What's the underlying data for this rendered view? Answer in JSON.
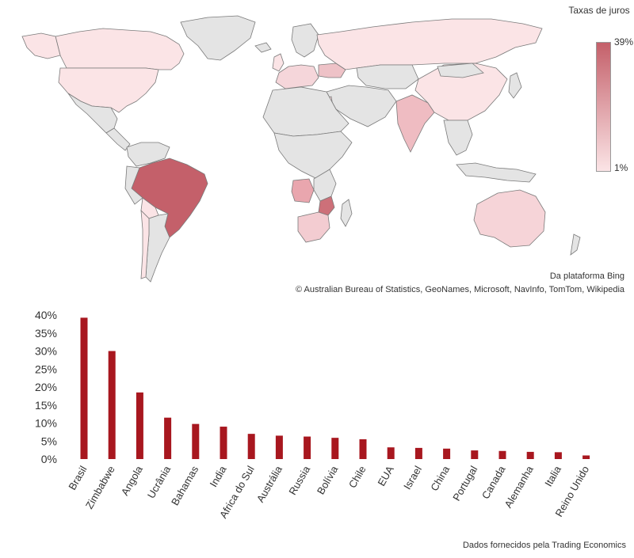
{
  "map": {
    "legend_title": "Taxas de juros",
    "legend_max": "39%",
    "legend_min": "1%",
    "source": "Da plataforma Bing",
    "credits": "© Australian Bureau of Statistics, GeoNames, Microsoft, NavInfo, TomTom, Wikipedia",
    "colors": {
      "low": "#fbe4e6",
      "high": "#c4606a",
      "neutral": "#e4e4e4",
      "border": "#7a7a7a"
    }
  },
  "chart_data": {
    "type": "bar",
    "categories": [
      "Brasil",
      "Zimbabwe",
      "Angola",
      "Ucrânia",
      "Bahamas",
      "India",
      "Africa do Sul",
      "Austrália",
      "Russia",
      "Bolívia",
      "Chile",
      "EUA",
      "Israel",
      "China",
      "Portugal",
      "Canada",
      "Alemanha",
      "Italia",
      "Reino Unido"
    ],
    "values": [
      39.25,
      30,
      18.5,
      11.5,
      9.75,
      9,
      7,
      6.5,
      6.25,
      5.9,
      5.5,
      3.25,
      3.1,
      2.9,
      2.4,
      2.25,
      2,
      1.9,
      1
    ],
    "ylim": [
      0,
      40
    ],
    "yticks": [
      0,
      5,
      10,
      15,
      20,
      25,
      30,
      35,
      40
    ],
    "ytick_labels": [
      "0%",
      "5%",
      "10%",
      "15%",
      "20%",
      "25%",
      "30%",
      "35%",
      "40%"
    ],
    "bar_color": "#a8171f",
    "title": "",
    "xlabel": "",
    "ylabel": ""
  },
  "footnote": "Dados fornecidos pela Trading Economics"
}
